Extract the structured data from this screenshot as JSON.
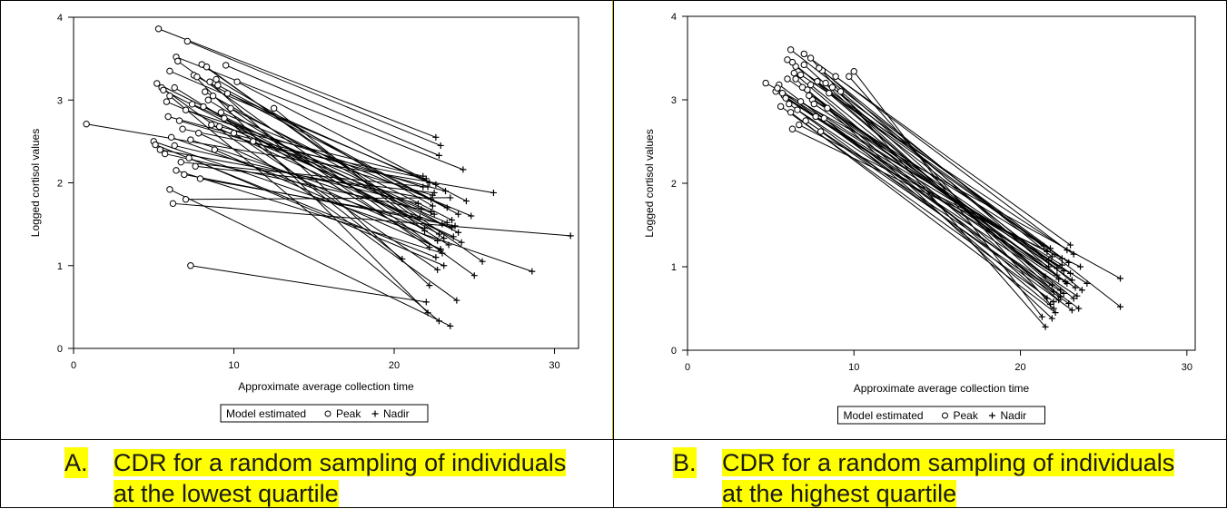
{
  "chart_data": [
    {
      "type": "scatter",
      "panel_id": "A",
      "xlabel": "Approximate average collection time",
      "ylabel": "Logged cortisol values",
      "xlim": [
        0,
        31.5
      ],
      "ylim": [
        0,
        4
      ],
      "xticks": [
        0,
        10,
        20,
        30
      ],
      "yticks": [
        0,
        1,
        2,
        3,
        4
      ],
      "grid": false,
      "legend": {
        "position": "bottom-center",
        "title": "Model estimated",
        "entries": [
          "Peak",
          "Nadir"
        ],
        "markers": [
          "circle",
          "plus"
        ]
      },
      "series": [
        {
          "name": "Peak",
          "marker": "circle",
          "x": [
            5.3,
            7.1,
            9.5,
            6.4,
            0.8,
            7.3,
            6.0,
            6.2,
            5.0,
            8.0,
            6.5,
            5.5,
            7.5,
            8.5,
            6.0,
            9.0,
            5.8,
            7.0,
            8.2,
            6.6,
            5.2,
            9.8,
            7.8,
            6.3,
            8.8,
            5.9,
            10.2,
            7.4,
            6.1,
            8.6,
            5.1,
            7.2,
            9.2,
            6.8,
            8.4,
            5.7,
            7.6,
            6.9,
            9.6,
            8.1,
            6.4,
            7.9,
            5.6,
            8.9,
            7.0,
            6.7,
            9.4,
            10.0,
            11.2,
            12.5,
            6.0,
            7.7,
            8.3,
            5.4,
            6.3,
            9.1,
            7.3,
            8.7
          ],
          "y": [
            3.86,
            3.71,
            3.42,
            3.52,
            2.71,
            1.0,
            1.92,
            1.75,
            2.5,
            3.43,
            3.47,
            3.15,
            3.3,
            3.22,
            3.05,
            3.18,
            2.98,
            2.88,
            3.1,
            2.75,
            3.2,
            2.9,
            2.6,
            2.45,
            2.4,
            2.8,
            3.22,
            2.95,
            2.55,
            2.7,
            2.46,
            2.3,
            2.85,
            2.65,
            3.0,
            2.35,
            2.2,
            2.1,
            3.08,
            2.92,
            2.15,
            2.05,
            3.12,
            3.25,
            1.8,
            2.25,
            2.78,
            2.6,
            2.5,
            2.9,
            3.35,
            3.28,
            3.4,
            2.4,
            3.15,
            2.68,
            2.52,
            3.05
          ]
        },
        {
          "name": "Nadir",
          "marker": "plus",
          "x": [
            22.6,
            22.9,
            22.8,
            24.3,
            26.2,
            22.0,
            23.5,
            31.0,
            28.6,
            25.5,
            25.0,
            23.9,
            22.1,
            22.2,
            22.8,
            23.3,
            22.5,
            21.8,
            23.0,
            22.4,
            24.0,
            23.6,
            22.7,
            21.5,
            22.9,
            23.2,
            24.5,
            22.3,
            21.9,
            23.7,
            22.6,
            23.1,
            24.8,
            22.0,
            23.4,
            21.7,
            22.5,
            23.8,
            22.2,
            22.8,
            23.0,
            21.6,
            24.2,
            22.4,
            23.5,
            22.1,
            20.5,
            22.7,
            23.3,
            21.9,
            22.6,
            24.0,
            23.1,
            22.3,
            22.9,
            21.8,
            23.6,
            22.2
          ],
          "y": [
            2.55,
            2.45,
            2.33,
            2.16,
            1.88,
            0.56,
            0.27,
            1.36,
            0.93,
            1.05,
            0.88,
            0.58,
            0.43,
            0.76,
            0.33,
            1.7,
            1.62,
            1.95,
            1.5,
            1.85,
            1.4,
            1.55,
            1.3,
            1.75,
            1.2,
            1.9,
            1.78,
            1.65,
            1.45,
            1.35,
            1.1,
            1.0,
            1.6,
            2.05,
            1.25,
            1.68,
            1.88,
            1.48,
            2.0,
            1.38,
            1.15,
            1.58,
            1.28,
            1.72,
            1.82,
            1.95,
            1.08,
            0.95,
            1.52,
            1.42,
            1.98,
            1.62,
            1.33,
            1.8,
            1.18,
            2.08,
            1.46,
            1.22
          ]
        }
      ]
    },
    {
      "type": "scatter",
      "panel_id": "B",
      "xlabel": "Approximate average collection time",
      "ylabel": "Logged cortisol values",
      "xlim": [
        0,
        30.5
      ],
      "ylim": [
        0,
        4
      ],
      "xticks": [
        0,
        10,
        20,
        30
      ],
      "yticks": [
        0,
        1,
        2,
        3,
        4
      ],
      "grid": false,
      "legend": {
        "position": "bottom-center",
        "title": "Model estimated",
        "entries": [
          "Peak",
          "Nadir"
        ],
        "markers": [
          "circle",
          "plus"
        ]
      },
      "series": [
        {
          "name": "Peak",
          "marker": "circle",
          "x": [
            4.7,
            6.2,
            6.3,
            7.0,
            7.4,
            10.0,
            9.7,
            5.5,
            5.8,
            6.0,
            6.5,
            6.8,
            7.2,
            7.8,
            8.1,
            8.5,
            8.9,
            6.1,
            6.6,
            7.5,
            5.3,
            5.6,
            6.3,
            6.9,
            7.7,
            8.3,
            6.2,
            7.1,
            5.9,
            8.7,
            7.9,
            6.4,
            7.3,
            5.4,
            6.7,
            7.6,
            8.0,
            9.2,
            6.0,
            7.0,
            8.4,
            6.5,
            5.7,
            7.4,
            6.8,
            8.2
          ],
          "y": [
            3.2,
            3.6,
            2.65,
            3.55,
            3.5,
            3.34,
            3.28,
            3.18,
            3.05,
            3.25,
            3.4,
            3.3,
            3.12,
            3.22,
            3.35,
            3.08,
            3.28,
            2.95,
            2.88,
            3.0,
            3.1,
            2.92,
            3.45,
            3.15,
            2.8,
            3.2,
            2.85,
            2.75,
            3.02,
            3.15,
            3.38,
            3.32,
            3.05,
            3.14,
            2.7,
            2.95,
            2.62,
            3.1,
            3.48,
            3.42,
            2.9,
            3.25,
            3.08,
            3.18,
            2.98,
            2.78
          ]
        },
        {
          "name": "Nadir",
          "marker": "plus",
          "x": [
            26.0,
            26.0,
            23.6,
            23.0,
            21.5,
            21.3,
            21.8,
            22.0,
            22.3,
            22.6,
            22.9,
            23.2,
            21.6,
            21.9,
            22.2,
            22.5,
            22.8,
            23.1,
            23.4,
            21.4,
            21.7,
            22.0,
            22.4,
            22.7,
            23.0,
            21.8,
            22.1,
            22.6,
            23.3,
            21.5,
            21.9,
            22.3,
            22.8,
            23.5,
            21.6,
            22.2,
            22.9,
            23.7,
            21.7,
            22.4,
            23.1,
            21.9,
            22.5,
            23.2,
            24.0,
            22.0
          ],
          "y": [
            0.86,
            0.52,
            1.0,
            1.26,
            0.28,
            0.4,
            0.55,
            0.7,
            0.85,
            0.95,
            1.05,
            1.15,
            0.62,
            0.78,
            0.9,
            1.1,
            1.2,
            0.48,
            0.65,
            1.25,
            1.0,
            0.58,
            0.72,
            0.82,
            0.92,
            1.22,
            0.45,
            0.68,
            0.75,
            0.88,
            1.12,
            0.6,
            0.8,
            0.5,
            1.18,
            0.98,
            0.56,
            0.72,
            1.08,
            0.64,
            0.84,
            0.38,
            1.02,
            0.62,
            0.8,
            0.5
          ]
        }
      ]
    }
  ],
  "captions": {
    "A": {
      "letter": "A.",
      "line1": "CDR for a random sampling of individuals",
      "line2": "at the lowest quartile"
    },
    "B": {
      "letter": "B.",
      "line1": "CDR for a random sampling of individuals",
      "line2": "at the highest quartile"
    }
  },
  "colors": {
    "highlight": "#ffff00",
    "ink": "#000000",
    "panel_border_a": "#c8b400"
  }
}
